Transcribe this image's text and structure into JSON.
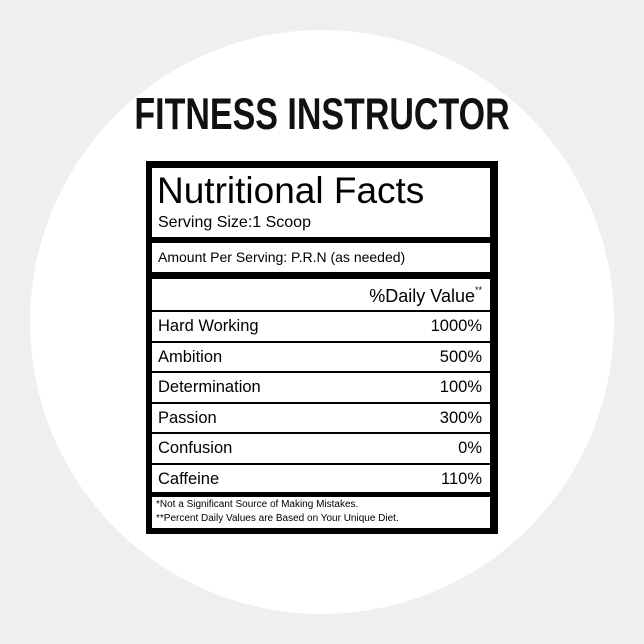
{
  "title": "FITNESS INSTRUCTOR",
  "label": {
    "heading": "Nutritional Facts",
    "serving_size": "Serving Size:1 Scoop",
    "amount_per_serving": "Amount Per Serving: P.R.N (as needed)",
    "column_header": "%Daily Value",
    "column_header_mark": "**",
    "rows": [
      [
        "Hard Working",
        "1000%"
      ],
      [
        "Ambition",
        "500%"
      ],
      [
        "Determination",
        "100%"
      ],
      [
        "Passion",
        "300%"
      ],
      [
        "Confusion",
        "0%"
      ],
      [
        "Caffeine",
        "110%"
      ]
    ],
    "footnotes": [
      "*Not a Significant Source of Making Mistakes.",
      "**Percent Daily Values are Based on Your Unique Diet."
    ]
  }
}
